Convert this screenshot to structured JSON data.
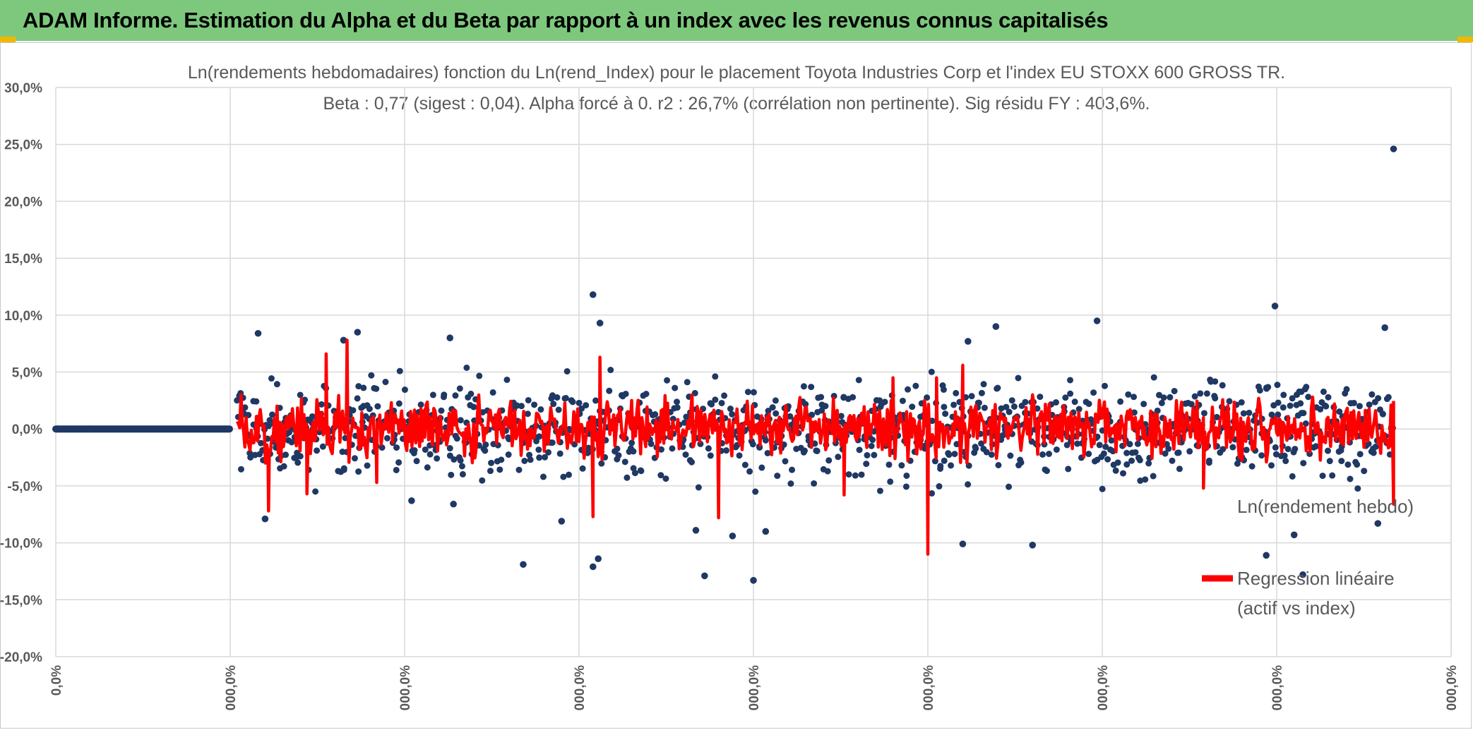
{
  "banner": {
    "title": "ADAM Informe. Estimation du Alpha et du Beta par rapport à un index avec les revenus connus capitalisés"
  },
  "colors": {
    "banner_bg": "#7dc87d",
    "points": "#1f3864",
    "regression": "#ff0000",
    "grid": "#d9d9d9",
    "text": "#595959"
  },
  "chart_data": {
    "type": "scatter",
    "title": "Ln(rendements hebdomadaires) fonction du Ln(rend_Index) pour le placement Toyota Industries Corp et l'index EU STOXX 600 GROSS TR.",
    "subtitle": "Beta : 0,77 (sigest : 0,04). Alpha forcé à 0. r2 : 26,7% (corrélation non pertinente). Sig résidu FY : 403,6%.",
    "ylim": [
      -0.2,
      0.3
    ],
    "y_ticks": [
      0.3,
      0.25,
      0.2,
      0.15,
      0.1,
      0.05,
      0.0,
      -0.05,
      -0.1,
      -0.15,
      -0.2
    ],
    "y_tick_labels": [
      "30,0%",
      "25,0%",
      "20,0%",
      "15,0%",
      "10,0%",
      "5,0%",
      "0,0%",
      "-5,0%",
      "-10,0%",
      "-15,0%",
      "-20,0%"
    ],
    "x_tick_labels": [
      "0,0%",
      "000,0%",
      "000,0%",
      "000,0%",
      "000,0%",
      "000,0%",
      "000,0%",
      "000,0%",
      "000,0%"
    ],
    "grid": true,
    "legend_position": "right",
    "series": [
      {
        "name": "Ln(rendement hebdo)",
        "kind": "scatter",
        "flat_segment": {
          "x": [
            0,
            1
          ],
          "y": 0.0
        },
        "noise_range_x": [
          1.04,
          7.67
        ],
        "outliers": [
          {
            "x": 7.67,
            "y": 0.246
          },
          {
            "x": 3.08,
            "y": 0.118
          },
          {
            "x": 6.99,
            "y": 0.108
          },
          {
            "x": 3.12,
            "y": 0.093
          },
          {
            "x": 5.39,
            "y": 0.09
          },
          {
            "x": 7.62,
            "y": 0.089
          },
          {
            "x": 1.16,
            "y": 0.084
          },
          {
            "x": 1.73,
            "y": 0.085
          },
          {
            "x": 1.65,
            "y": 0.078
          },
          {
            "x": 2.26,
            "y": 0.08
          },
          {
            "x": 5.23,
            "y": 0.077
          },
          {
            "x": 5.97,
            "y": 0.095
          },
          {
            "x": 4.0,
            "y": -0.133
          },
          {
            "x": 3.72,
            "y": -0.129
          },
          {
            "x": 7.15,
            "y": -0.128
          },
          {
            "x": 3.08,
            "y": -0.121
          },
          {
            "x": 3.11,
            "y": -0.114
          },
          {
            "x": 2.68,
            "y": -0.119
          },
          {
            "x": 5.2,
            "y": -0.101
          },
          {
            "x": 5.6,
            "y": -0.102
          },
          {
            "x": 6.94,
            "y": -0.111
          },
          {
            "x": 4.07,
            "y": -0.09
          },
          {
            "x": 3.88,
            "y": -0.094
          },
          {
            "x": 7.1,
            "y": -0.093
          },
          {
            "x": 7.58,
            "y": -0.083
          },
          {
            "x": 2.9,
            "y": -0.081
          },
          {
            "x": 1.2,
            "y": -0.079
          },
          {
            "x": 3.67,
            "y": -0.089
          },
          {
            "x": 2.28,
            "y": -0.066
          },
          {
            "x": 2.04,
            "y": -0.063
          }
        ]
      },
      {
        "name": "Regression linéaire (actif vs index)",
        "kind": "line",
        "spikes": [
          {
            "x": 1.55,
            "y": 0.066
          },
          {
            "x": 1.67,
            "y": 0.078
          },
          {
            "x": 3.12,
            "y": 0.063
          },
          {
            "x": 5.2,
            "y": 0.056
          },
          {
            "x": 5.05,
            "y": 0.045
          },
          {
            "x": 4.8,
            "y": 0.045
          },
          {
            "x": 3.08,
            "y": -0.077
          },
          {
            "x": 3.8,
            "y": -0.078
          },
          {
            "x": 5.0,
            "y": -0.11
          },
          {
            "x": 5.0,
            "y": -0.099
          },
          {
            "x": 1.22,
            "y": -0.072
          },
          {
            "x": 1.44,
            "y": -0.057
          },
          {
            "x": 4.52,
            "y": -0.058
          },
          {
            "x": 7.67,
            "y": -0.066
          },
          {
            "x": 6.58,
            "y": -0.052
          },
          {
            "x": 1.84,
            "y": -0.047
          }
        ]
      }
    ]
  }
}
